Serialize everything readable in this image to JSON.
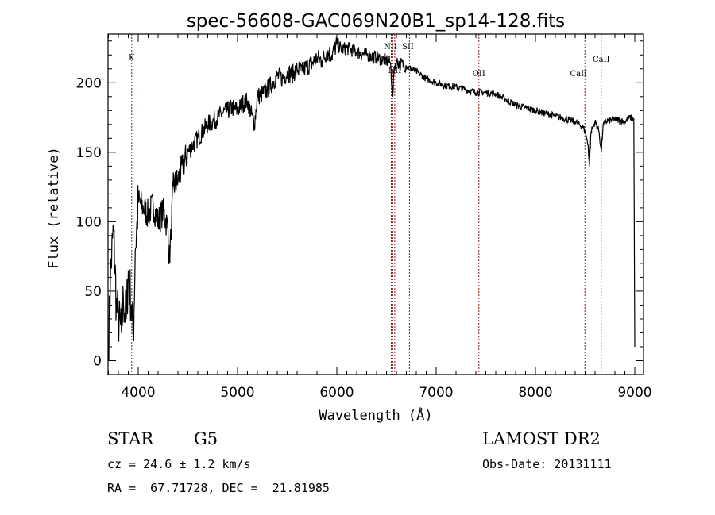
{
  "chart_data": {
    "type": "line",
    "title": "spec-56608-GAC069N20B1_sp14-128.fits",
    "xlabel": "Wavelength (Å)",
    "ylabel": "Flux (relative)",
    "xlim": [
      3696,
      9088
    ],
    "ylim": [
      -10,
      235
    ],
    "xticks": [
      4000,
      5000,
      6000,
      7000,
      8000,
      9000
    ],
    "xtick_labels": [
      "4000",
      "5000",
      "6000",
      "7000",
      "8000",
      "9000"
    ],
    "yticks": [
      0,
      50,
      100,
      150,
      200
    ],
    "ytick_labels": [
      "0",
      "50",
      "100",
      "150",
      "200"
    ],
    "grid": false,
    "series": [
      {
        "name": "spectrum",
        "x": [
          3700,
          3720,
          3750,
          3780,
          3800,
          3830,
          3850,
          3880,
          3900,
          3930,
          3950,
          3970,
          3990,
          4000,
          4050,
          4100,
          4150,
          4200,
          4250,
          4300,
          4310,
          4330,
          4350,
          4400,
          4450,
          4500,
          4550,
          4600,
          4650,
          4700,
          4750,
          4800,
          4850,
          4900,
          4950,
          5000,
          5050,
          5100,
          5170,
          5200,
          5250,
          5300,
          5350,
          5400,
          5450,
          5500,
          5550,
          5600,
          5650,
          5700,
          5750,
          5800,
          5850,
          5900,
          5950,
          6000,
          6050,
          6100,
          6200,
          6300,
          6400,
          6500,
          6540,
          6563,
          6580,
          6600,
          6700,
          6800,
          6900,
          7000,
          7100,
          7200,
          7300,
          7400,
          7500,
          7600,
          7700,
          7800,
          7900,
          8000,
          8100,
          8200,
          8300,
          8400,
          8480,
          8500,
          8530,
          8542,
          8560,
          8600,
          8640,
          8662,
          8680,
          8700,
          8800,
          8900,
          8950,
          8990,
          9000
        ],
        "y": [
          10,
          60,
          95,
          40,
          30,
          20,
          45,
          30,
          65,
          40,
          15,
          80,
          100,
          115,
          110,
          105,
          112,
          100,
          108,
          95,
          70,
          90,
          125,
          130,
          140,
          150,
          155,
          160,
          165,
          170,
          172,
          175,
          178,
          180,
          182,
          180,
          185,
          187,
          170,
          190,
          192,
          195,
          200,
          205,
          203,
          207,
          206,
          210,
          208,
          212,
          214,
          218,
          216,
          222,
          220,
          228,
          224,
          225,
          222,
          220,
          218,
          216,
          214,
          190,
          212,
          215,
          212,
          208,
          203,
          200,
          198,
          197,
          195,
          193,
          193,
          192,
          188,
          184,
          182,
          180,
          178,
          176,
          174,
          172,
          168,
          165,
          155,
          140,
          165,
          172,
          165,
          150,
          168,
          172,
          174,
          172,
          175,
          174,
          10
        ]
      }
    ],
    "line_markers": [
      {
        "label": "K",
        "wavelength": 3934
      },
      {
        "label": "NII",
        "wavelength": 6548
      },
      {
        "label": "Hα",
        "wavelength": 6563
      },
      {
        "label": "NII",
        "wavelength": 6583
      },
      {
        "label": "SII",
        "wavelength": 6716
      },
      {
        "label": "SII",
        "wavelength": 6731
      },
      {
        "label": "OII",
        "wavelength": 7430
      },
      {
        "label": "CaII",
        "wavelength": 8498
      },
      {
        "label": "CaII",
        "wavelength": 8662
      }
    ],
    "colors": {
      "spectrum": "#000000",
      "markers": "#8b1a1a"
    }
  },
  "info": {
    "class": "STAR",
    "subclass": "G5",
    "cz": "cz = 24.6 ± 1.2 km/s",
    "coords": "RA =  67.71728, DEC =  21.81985",
    "survey": "LAMOST DR2",
    "obs_date": "Obs-Date: 20131111"
  }
}
